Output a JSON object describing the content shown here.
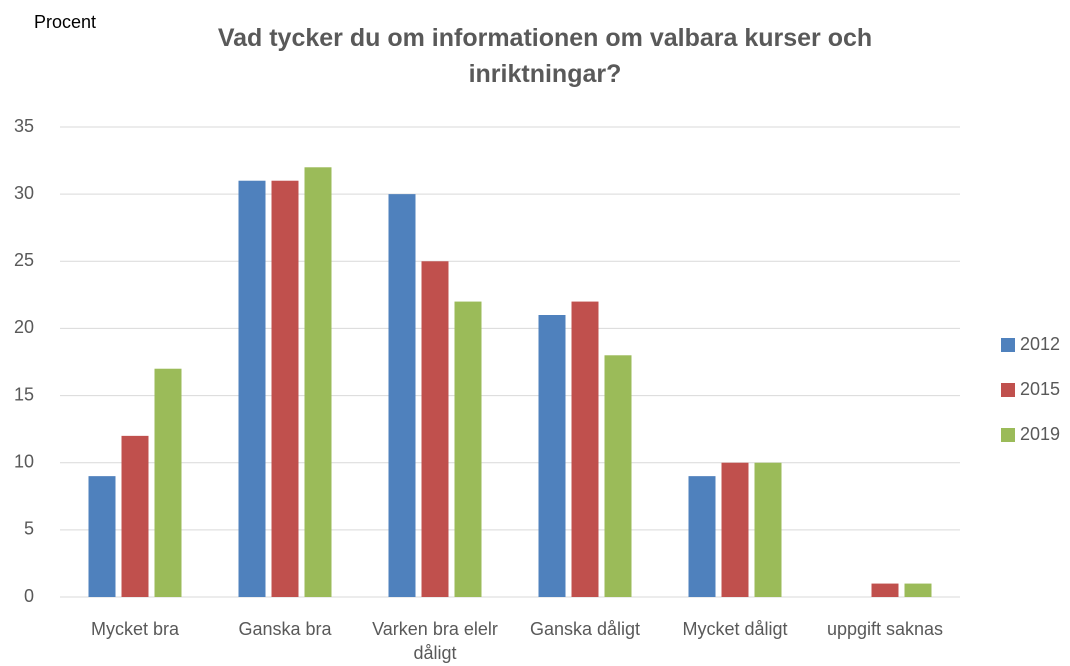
{
  "chart_data": {
    "type": "bar",
    "title": "Vad tycker du om informationen om valbara kurser och inriktningar?",
    "y_axis_label": "Procent",
    "categories": [
      "Mycket bra",
      "Ganska bra",
      "Varken bra elelr dåligt",
      "Ganska dåligt",
      "Mycket dåligt",
      "uppgift saknas"
    ],
    "series": [
      {
        "name": "2012",
        "color": "#4f81bd",
        "values": [
          9,
          31,
          30,
          21,
          9,
          0
        ]
      },
      {
        "name": "2015",
        "color": "#c0504d",
        "values": [
          12,
          31,
          25,
          22,
          10,
          1
        ]
      },
      {
        "name": "2019",
        "color": "#9bbb59",
        "values": [
          17,
          32,
          22,
          18,
          10,
          1
        ]
      }
    ],
    "ylim": [
      0,
      35
    ],
    "yticks": [
      0,
      5,
      10,
      15,
      20,
      25,
      30,
      35
    ],
    "grid": true,
    "legend": "right"
  }
}
